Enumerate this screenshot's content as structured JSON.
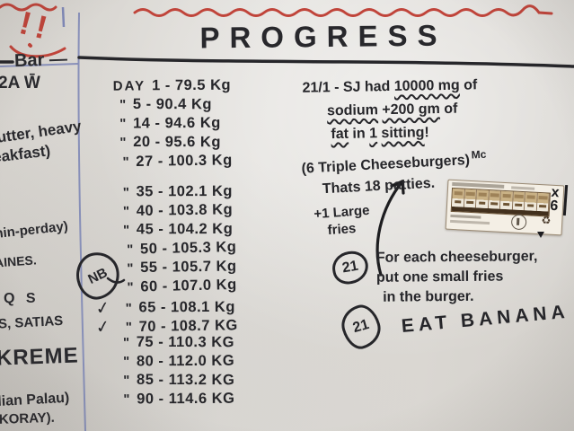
{
  "title": "PROGRESS",
  "left_margin": {
    "doodle": "!!",
    "lines": [
      "Bar —",
      "2A W̄",
      "butter, heavy",
      "eakfast)",
      "min-perday)",
      "AINES.",
      "Q S",
      "ES, SATIAS",
      "KREME",
      "dian Palau)",
      "AKORAY)."
    ]
  },
  "weight_log": {
    "nb_label": "NB",
    "rows": [
      {
        "check": "",
        "ditto": "DAY",
        "text": "1 - 79.5 Kg"
      },
      {
        "check": "",
        "ditto": "\"",
        "text": "5 - 90.4 Kg"
      },
      {
        "check": "",
        "ditto": "\"",
        "text": "14 - 94.6 Kg"
      },
      {
        "check": "",
        "ditto": "\"",
        "text": "20 - 95.6 Kg"
      },
      {
        "check": "",
        "ditto": "\"",
        "text": "27 - 100.3 Kg"
      },
      {
        "check": "",
        "ditto": "\"",
        "text": "35 - 102.1 Kg"
      },
      {
        "check": "",
        "ditto": "\"",
        "text": "40 - 103.8 Kg"
      },
      {
        "check": "",
        "ditto": "\"",
        "text": "45 - 104.2 Kg"
      },
      {
        "check": "",
        "ditto": "\"",
        "text": "50 - 105.3 Kg"
      },
      {
        "check": "",
        "ditto": "\"",
        "text": "55 - 105.7 Kg"
      },
      {
        "check": "",
        "ditto": "\"",
        "text": "60 - 107.0 Kg"
      },
      {
        "check": "✓",
        "ditto": "\"",
        "text": "65 - 108.1 Kg"
      },
      {
        "check": "✓",
        "ditto": "\"",
        "text": "70 - 108.7 KG"
      },
      {
        "check": "",
        "ditto": "\"",
        "text": "75 - 110.3 KG"
      },
      {
        "check": "",
        "ditto": "\"",
        "text": "80 - 112.0 KG"
      },
      {
        "check": "",
        "ditto": "\"",
        "text": "85 - 113.2 KG"
      },
      {
        "check": "",
        "ditto": "\"",
        "text": "90 - 114.6 KG"
      }
    ]
  },
  "notes": {
    "sodium": {
      "lines": [
        [
          {
            "t": "21/1 - SJ had "
          },
          {
            "t": "10000 mg",
            "u": true
          },
          {
            "t": " of"
          }
        ],
        [
          {
            "t": "sodium",
            "u": true
          },
          {
            "t": " "
          },
          {
            "t": "+200 gm",
            "u": true
          },
          {
            "t": " of"
          }
        ],
        [
          {
            "t": "fat",
            "u": true
          },
          {
            "t": " in "
          },
          {
            "t": "1",
            "u": true
          },
          {
            "t": " "
          },
          {
            "t": "sitting",
            "u": true
          },
          {
            "t": "!"
          }
        ]
      ]
    },
    "burgers": {
      "line1": "(6 Triple Cheeseburgers)",
      "mc": "Mc",
      "line2": "Thats 18 patties."
    },
    "fries": {
      "line1": "+1 Large",
      "line2": "fries"
    },
    "instruction": {
      "badge": "21",
      "lines": [
        "For each cheeseburger,",
        "put one small fries",
        "in the burger."
      ]
    },
    "banana": {
      "badge": "21",
      "text": "EAT BANANA"
    }
  },
  "sticker": {
    "multiplier_x": "x",
    "multiplier_n": "6",
    "recycle_icon": "♻",
    "columns": 8
  }
}
